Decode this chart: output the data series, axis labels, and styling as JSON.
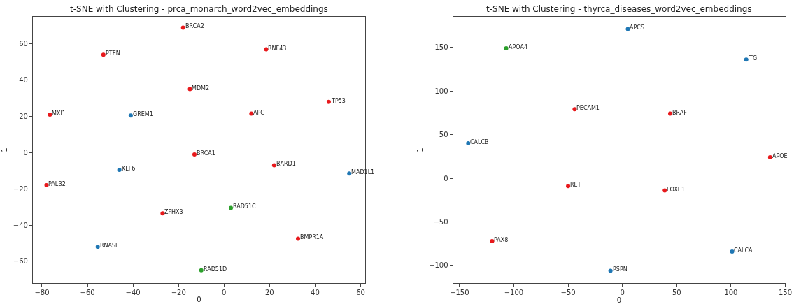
{
  "chart_data": [
    {
      "type": "scatter",
      "title": "t-SNE with Clustering - prca_monarch_word2vec_embeddings",
      "xlabel": "0",
      "ylabel": "1",
      "xlim": [
        -84,
        62
      ],
      "ylim": [
        -72,
        75
      ],
      "xticks": [
        -80,
        -60,
        -40,
        -20,
        0,
        20,
        40,
        60
      ],
      "yticks": [
        -60,
        -40,
        -20,
        0,
        20,
        40,
        60
      ],
      "marker": "circle",
      "series": [
        {
          "color": "#e8191c",
          "x": [
            -18,
            -53,
            18.5,
            -15,
            46,
            -76.5,
            12,
            -13,
            22,
            -78,
            -27,
            32.5
          ],
          "values": [
            69,
            54,
            57,
            35,
            28,
            21,
            21.5,
            -1,
            -7,
            -18,
            -33.5,
            -47.5
          ]
        },
        {
          "color": "#1f77b4",
          "x": [
            -41,
            -46,
            55,
            -55.5
          ],
          "values": [
            20.5,
            -9.5,
            -11.5,
            -52
          ]
        },
        {
          "color": "#2ca02c",
          "x": [
            3,
            -10
          ],
          "values": [
            -30.5,
            -65
          ]
        }
      ],
      "annotations": [
        {
          "text": "BRCA2",
          "x": -18,
          "y": 69
        },
        {
          "text": "PTEN",
          "x": -53,
          "y": 54
        },
        {
          "text": "RNF43",
          "x": 18.5,
          "y": 57
        },
        {
          "text": "MDM2",
          "x": -15,
          "y": 35
        },
        {
          "text": "TP53",
          "x": 46,
          "y": 28
        },
        {
          "text": "MXI1",
          "x": -76.5,
          "y": 21
        },
        {
          "text": "APC",
          "x": 12,
          "y": 21.5
        },
        {
          "text": "BRCA1",
          "x": -13,
          "y": -1
        },
        {
          "text": "BARD1",
          "x": 22,
          "y": -7
        },
        {
          "text": "PALB2",
          "x": -78,
          "y": -18
        },
        {
          "text": "ZFHX3",
          "x": -27,
          "y": -33.5
        },
        {
          "text": "BMPR1A",
          "x": 32.5,
          "y": -47.5
        },
        {
          "text": "GREM1",
          "x": -41,
          "y": 20.5
        },
        {
          "text": "KLF6",
          "x": -46,
          "y": -9.5
        },
        {
          "text": "MAD1L1",
          "x": 55,
          "y": -11.5
        },
        {
          "text": "RNASEL",
          "x": -55.5,
          "y": -52
        },
        {
          "text": "RAD51C",
          "x": 3,
          "y": -30.5
        },
        {
          "text": "RAD51D",
          "x": -10,
          "y": -65
        }
      ]
    },
    {
      "type": "scatter",
      "title": "t-SNE with Clustering - thyrca_diseases_word2vec_embeddings",
      "xlabel": "0",
      "ylabel": "1",
      "xlim": [
        -156,
        150
      ],
      "ylim": [
        -120,
        185
      ],
      "xticks": [
        -150,
        -100,
        -50,
        0,
        50,
        100,
        150
      ],
      "yticks": [
        -100,
        -50,
        0,
        50,
        100,
        150
      ],
      "marker": "circle",
      "series": [
        {
          "color": "#e8191c",
          "x": [
            -44,
            44,
            136,
            -50,
            39,
            -120
          ],
          "values": [
            79,
            74,
            24,
            -9,
            -14,
            -72
          ]
        },
        {
          "color": "#1f77b4",
          "x": [
            5,
            114,
            -142,
            101,
            -11
          ],
          "values": [
            171,
            136,
            40,
            -84,
            -106
          ]
        },
        {
          "color": "#2ca02c",
          "x": [
            -107
          ],
          "values": [
            149
          ]
        }
      ],
      "annotations": [
        {
          "text": "PECAM1",
          "x": -44,
          "y": 79
        },
        {
          "text": "BRAF",
          "x": 44,
          "y": 74
        },
        {
          "text": "APOE",
          "x": 136,
          "y": 24
        },
        {
          "text": "RET",
          "x": -50,
          "y": -9
        },
        {
          "text": "FOXE1",
          "x": 39,
          "y": -14
        },
        {
          "text": "PAX8",
          "x": -120,
          "y": -72
        },
        {
          "text": "APCS",
          "x": 5,
          "y": 171
        },
        {
          "text": "TG",
          "x": 114,
          "y": 136
        },
        {
          "text": "CALCB",
          "x": -142,
          "y": 40
        },
        {
          "text": "CALCA",
          "x": 101,
          "y": -84
        },
        {
          "text": "PSPN",
          "x": -11,
          "y": -106
        },
        {
          "text": "APOA4",
          "x": -107,
          "y": 149
        }
      ]
    }
  ]
}
